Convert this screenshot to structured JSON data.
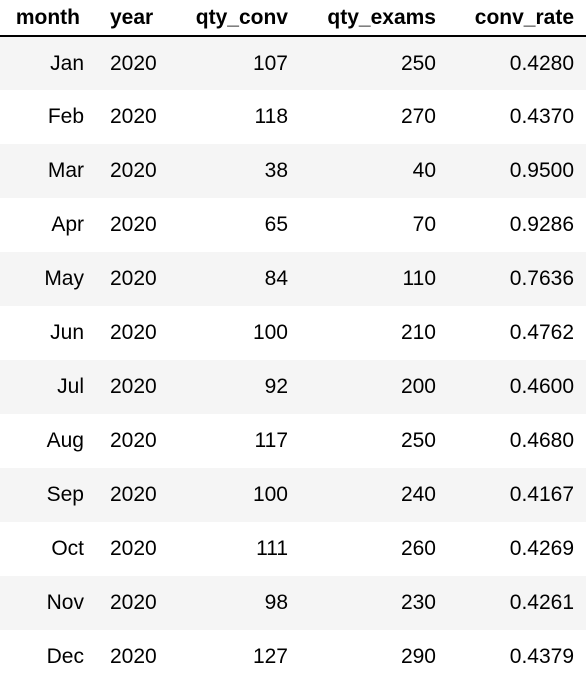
{
  "table": {
    "columns": [
      "month",
      "year",
      "qty_conv",
      "qty_exams",
      "conv_rate"
    ],
    "rows": [
      [
        "Jan",
        "2020",
        "107",
        "250",
        "0.4280"
      ],
      [
        "Feb",
        "2020",
        "118",
        "270",
        "0.4370"
      ],
      [
        "Mar",
        "2020",
        "38",
        "40",
        "0.9500"
      ],
      [
        "Apr",
        "2020",
        "65",
        "70",
        "0.9286"
      ],
      [
        "May",
        "2020",
        "84",
        "110",
        "0.7636"
      ],
      [
        "Jun",
        "2020",
        "100",
        "210",
        "0.4762"
      ],
      [
        "Jul",
        "2020",
        "92",
        "200",
        "0.4600"
      ],
      [
        "Aug",
        "2020",
        "117",
        "250",
        "0.4680"
      ],
      [
        "Sep",
        "2020",
        "100",
        "240",
        "0.4167"
      ],
      [
        "Oct",
        "2020",
        "111",
        "260",
        "0.4269"
      ],
      [
        "Nov",
        "2020",
        "98",
        "230",
        "0.4261"
      ],
      [
        "Dec",
        "2020",
        "127",
        "290",
        "0.4379"
      ]
    ]
  },
  "colors": {
    "stripe": "#f5f5f5",
    "background": "#ffffff",
    "text": "#000000",
    "header_rule": "#000000"
  }
}
